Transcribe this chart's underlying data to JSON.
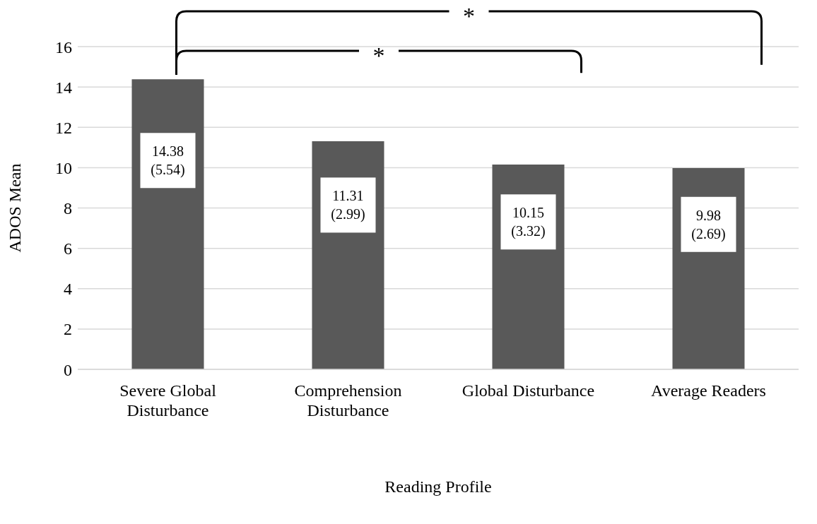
{
  "chart_data": {
    "type": "bar",
    "xlabel": "Reading Profile",
    "ylabel": "ADOS Mean",
    "categories": [
      "Severe Global Disturbance",
      "Comprehension Disturbance",
      "Global Disturbance",
      "Average Readers"
    ],
    "values": [
      14.38,
      11.31,
      10.15,
      9.98
    ],
    "value_labels": [
      "14.38 (5.54)",
      "11.31 (2.99)",
      "10.15 (3.32)",
      "9.98 (2.69)"
    ],
    "color": "#595959",
    "ylim": [
      0,
      16
    ],
    "yticks": [
      0,
      2,
      4,
      6,
      8,
      10,
      12,
      14,
      16
    ],
    "grid": "y",
    "annotations": [
      "*",
      "*"
    ]
  }
}
